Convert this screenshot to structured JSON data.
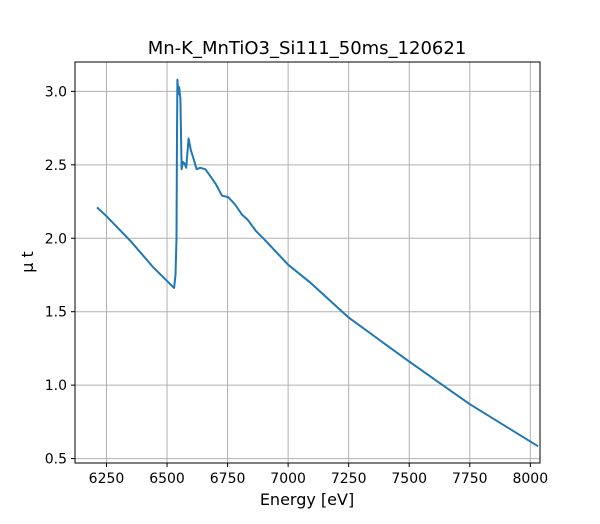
{
  "chart_data": {
    "type": "line",
    "title": "Mn-K_MnTiO3_Si111_50ms_120621",
    "xlabel": "Energy [eV]",
    "ylabel": "μ t",
    "xlim": [
      6120,
      8040
    ],
    "ylim": [
      0.47,
      3.2
    ],
    "xticks": [
      6250,
      6500,
      6750,
      7000,
      7250,
      7500,
      7750,
      8000
    ],
    "yticks": [
      0.5,
      1.0,
      1.5,
      2.0,
      2.5,
      3.0
    ],
    "grid": true,
    "color": "#1f77b4",
    "series": [
      {
        "x": [
          6211,
          6250,
          6350,
          6444,
          6500,
          6529,
          6535,
          6539,
          6541,
          6543,
          6547,
          6550,
          6555,
          6560,
          6566,
          6572,
          6579,
          6589,
          6598,
          6608,
          6622,
          6637,
          6658,
          6680,
          6701,
          6727,
          6752,
          6781,
          6810,
          6831,
          6867,
          6903,
          7000,
          7090,
          7250,
          7500,
          7750,
          8032
        ],
        "y": [
          2.21,
          2.15,
          1.98,
          1.8,
          1.71,
          1.662,
          1.75,
          2.0,
          2.7,
          3.08,
          2.98,
          3.03,
          2.95,
          2.47,
          2.52,
          2.51,
          2.48,
          2.68,
          2.6,
          2.55,
          2.47,
          2.48,
          2.47,
          2.42,
          2.37,
          2.29,
          2.28,
          2.23,
          2.16,
          2.13,
          2.05,
          1.99,
          1.82,
          1.7,
          1.46,
          1.16,
          0.87,
          0.584
        ]
      }
    ]
  }
}
